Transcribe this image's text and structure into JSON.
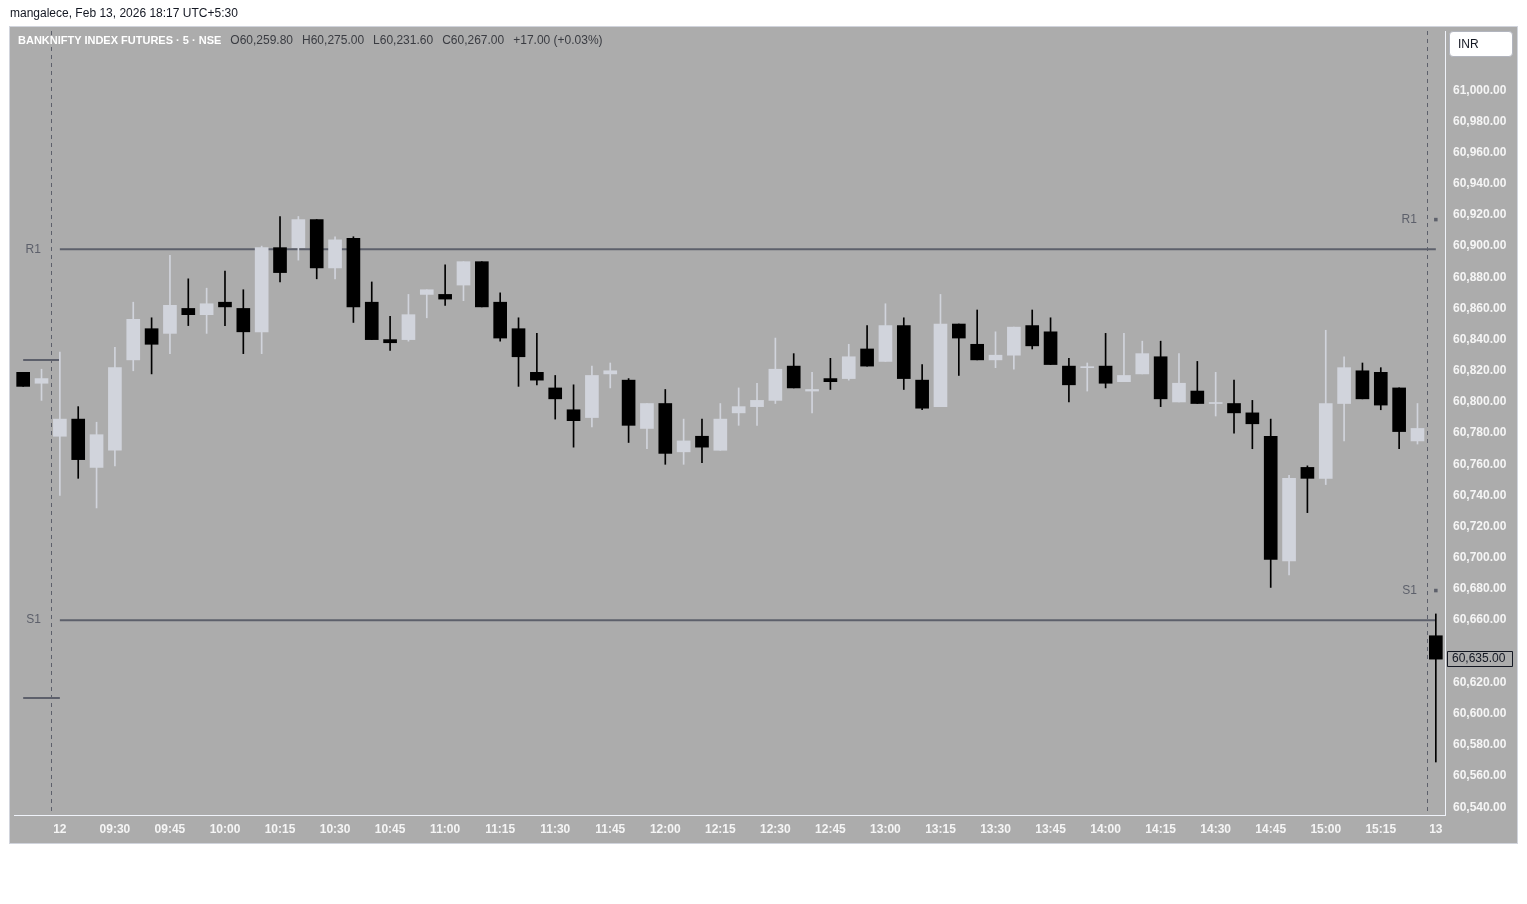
{
  "chart_data": {
    "type": "candlestick",
    "title": "BANKNIFTY INDEX FUTURES · 5 · NSE",
    "ylabel": "INR",
    "categories": [
      null,
      null,
      "12",
      null,
      null,
      "09:30",
      null,
      null,
      "09:45",
      null,
      null,
      "10:00",
      null,
      null,
      "10:15",
      null,
      null,
      "10:30",
      null,
      null,
      "10:45",
      null,
      null,
      "11:00",
      null,
      null,
      "11:15",
      null,
      null,
      "11:30",
      null,
      null,
      "11:45",
      null,
      null,
      "12:00",
      null,
      null,
      "12:15",
      null,
      null,
      "12:30",
      null,
      null,
      "12:45",
      null,
      null,
      "13:00",
      null,
      null,
      "13:15",
      null,
      null,
      "13:30",
      null,
      null,
      "13:45",
      null,
      null,
      "14:00",
      null,
      null,
      "14:15",
      null,
      null,
      "14:30",
      null,
      null,
      "14:45",
      null,
      null,
      "15:00",
      null,
      null,
      "15:15",
      null,
      null,
      "13"
    ],
    "ohlc": [
      [
        60819,
        60819,
        60810,
        60810
      ],
      [
        60812,
        60821,
        60801,
        60815
      ],
      [
        60778,
        60832,
        60740,
        60789
      ],
      [
        60789,
        60797,
        60751,
        60763
      ],
      [
        60758,
        60787,
        60732,
        60779
      ],
      [
        60769,
        60835,
        60759,
        60822
      ],
      [
        60827,
        60864,
        60820,
        60853
      ],
      [
        60847,
        60854,
        60818,
        60837
      ],
      [
        60844,
        60894,
        60831,
        60862
      ],
      [
        60860,
        60879,
        60849,
        60856
      ],
      [
        60856,
        60873,
        60844,
        60863
      ],
      [
        60864,
        60884,
        60849,
        60861
      ],
      [
        60860,
        60872,
        60831,
        60845
      ],
      [
        60845,
        60900,
        60831,
        60899
      ],
      [
        60899,
        60919,
        60877,
        60883
      ],
      [
        60899,
        60919,
        60891,
        60917
      ],
      [
        60917,
        60917,
        60879,
        60886
      ],
      [
        60886,
        60906,
        60879,
        60904
      ],
      [
        60905,
        60906,
        60851,
        60861
      ],
      [
        60864,
        60877,
        60840,
        60840
      ],
      [
        60840,
        60855,
        60833,
        60838
      ],
      [
        60840,
        60869,
        60839,
        60856
      ],
      [
        60869,
        60872,
        60854,
        60872
      ],
      [
        60869,
        60888,
        60862,
        60866
      ],
      [
        60875,
        60890,
        60865,
        60890
      ],
      [
        60890,
        60890,
        60861,
        60861
      ],
      [
        60864,
        60870,
        60839,
        60841
      ],
      [
        60847,
        60854,
        60810,
        60829
      ],
      [
        60819,
        60844,
        60811,
        60814
      ],
      [
        60809,
        60817,
        60789,
        60802
      ],
      [
        60795,
        60811,
        60771,
        60788
      ],
      [
        60790,
        60823,
        60784,
        60817
      ],
      [
        60818,
        60825,
        60809,
        60820
      ],
      [
        60814,
        60815,
        60774,
        60785
      ],
      [
        60783,
        60799,
        60770,
        60799
      ],
      [
        60799,
        60808,
        60760,
        60767
      ],
      [
        60768,
        60789,
        60760,
        60775
      ],
      [
        60778,
        60789,
        60761,
        60771
      ],
      [
        60769,
        60799,
        60769,
        60789
      ],
      [
        60793,
        60809,
        60785,
        60797
      ],
      [
        60797,
        60812,
        60785,
        60801
      ],
      [
        60801,
        60841,
        60799,
        60821
      ],
      [
        60823,
        60831,
        60809,
        60809
      ],
      [
        60807,
        60819,
        60793,
        60808
      ],
      [
        60815,
        60828,
        60808,
        60813
      ],
      [
        60815,
        60837,
        60814,
        60829
      ],
      [
        60834,
        60849,
        60823,
        60823
      ],
      [
        60826,
        60863,
        60826,
        60849
      ],
      [
        60849,
        60854,
        60808,
        60815
      ],
      [
        60814,
        60824,
        60795,
        60796
      ],
      [
        60797,
        60869,
        60797,
        60850
      ],
      [
        60850,
        60850,
        60817,
        60841
      ],
      [
        60837,
        60859,
        60827,
        60827
      ],
      [
        60827,
        60845,
        60822,
        60830
      ],
      [
        60830,
        60848,
        60821,
        60848
      ],
      [
        60849,
        60859,
        60834,
        60836
      ],
      [
        60845,
        60854,
        60824,
        60824
      ],
      [
        60823,
        60828,
        60800,
        60811
      ],
      [
        60822,
        60825,
        60807,
        60822
      ],
      [
        60823,
        60844,
        60809,
        60812
      ],
      [
        60813,
        60844,
        60813,
        60817
      ],
      [
        60818,
        60839,
        60818,
        60831
      ],
      [
        60829,
        60839,
        60797,
        60802
      ],
      [
        60800,
        60831,
        60800,
        60812
      ],
      [
        60807,
        60826,
        60799,
        60799
      ],
      [
        60799,
        60819,
        60791,
        60799
      ],
      [
        60799,
        60814,
        60780,
        60793
      ],
      [
        60793,
        60801,
        60770,
        60786
      ],
      [
        60778,
        60789,
        60681,
        60699
      ],
      [
        60698,
        60753,
        60689,
        60751
      ],
      [
        60758,
        60759,
        60729,
        60751
      ],
      [
        60751,
        60846,
        60747,
        60799
      ],
      [
        60799,
        60829,
        60775,
        60822
      ],
      [
        60820,
        60825,
        60802,
        60802
      ],
      [
        60819,
        60822,
        60795,
        60798
      ],
      [
        60809,
        60809,
        60770,
        60781
      ],
      [
        60775,
        60799,
        60773,
        60783
      ],
      [
        60650,
        60664,
        60569,
        60635
      ]
    ],
    "colors": [
      "#000000",
      "#d1d4dc",
      "#d1d4dc",
      "#000000",
      "#d1d4dc",
      "#d1d4dc",
      "#d1d4dc",
      "#000000",
      "#d1d4dc",
      "#000000",
      "#d1d4dc",
      "#000000",
      "#000000",
      "#d1d4dc",
      "#000000",
      "#d1d4dc",
      "#000000",
      "#d1d4dc",
      "#000000",
      "#000000",
      "#000000",
      "#d1d4dc",
      "#d1d4dc",
      "#000000",
      "#d1d4dc",
      "#000000",
      "#000000",
      "#000000",
      "#000000",
      "#000000",
      "#000000",
      "#d1d4dc",
      "#d1d4dc",
      "#000000",
      "#d1d4dc",
      "#000000",
      "#d1d4dc",
      "#000000",
      "#d1d4dc",
      "#d1d4dc",
      "#d1d4dc",
      "#d1d4dc",
      "#000000",
      "#d1d4dc",
      "#000000",
      "#d1d4dc",
      "#000000",
      "#d1d4dc",
      "#000000",
      "#000000",
      "#d1d4dc",
      "#000000",
      "#000000",
      "#d1d4dc",
      "#d1d4dc",
      "#000000",
      "#000000",
      "#000000",
      "#d1d4dc",
      "#000000",
      "#d1d4dc",
      "#d1d4dc",
      "#000000",
      "#d1d4dc",
      "#000000",
      "#d1d4dc",
      "#000000",
      "#000000",
      "#000000",
      "#d1d4dc",
      "#000000",
      "#d1d4dc",
      "#d1d4dc",
      "#000000",
      "#000000",
      "#000000",
      "#d1d4dc",
      "#000000"
    ],
    "series": [
      {
        "type": "line",
        "color": "#5d606b",
        "values": [
          60827,
          60827,
          60827,
          null,
          null,
          null,
          null,
          null,
          null,
          null,
          null,
          null,
          null,
          null,
          null,
          null,
          null,
          null,
          null,
          null,
          null,
          null,
          null,
          null,
          null,
          null,
          null,
          null,
          null,
          null,
          null,
          null,
          null,
          null,
          null,
          null,
          null,
          null,
          null,
          null,
          null,
          null,
          null,
          null,
          null,
          null,
          null,
          null,
          null,
          null,
          null,
          null,
          null,
          null,
          null,
          null,
          null,
          null,
          null,
          null,
          null,
          null,
          null,
          null,
          null,
          null,
          null,
          null,
          null,
          null,
          null,
          null,
          null,
          null,
          null,
          null,
          null,
          null
        ]
      },
      {
        "type": "line",
        "color": "#5d606b",
        "values": [
          60610,
          60610,
          60610,
          null,
          null,
          null,
          null,
          null,
          null,
          null,
          null,
          null,
          null,
          null,
          null,
          null,
          null,
          null,
          null,
          null,
          null,
          null,
          null,
          null,
          null,
          null,
          null,
          null,
          null,
          null,
          null,
          null,
          null,
          null,
          null,
          null,
          null,
          null,
          null,
          null,
          null,
          null,
          null,
          null,
          null,
          null,
          null,
          null,
          null,
          null,
          null,
          null,
          null,
          null,
          null,
          null,
          null,
          null,
          null,
          null,
          null,
          null,
          null,
          null,
          null,
          null,
          null,
          null,
          null,
          null,
          null,
          null,
          null,
          null,
          null,
          null,
          null,
          null
        ]
      },
      {
        "type": "line",
        "name": "R1",
        "color": "#5d606b",
        "values": [
          null,
          null,
          60898,
          60898,
          60898,
          60898,
          60898,
          60898,
          60898,
          60898,
          60898,
          60898,
          60898,
          null,
          null,
          null,
          null,
          null,
          null,
          60898,
          60898,
          60898,
          60898,
          60898,
          60898,
          60898,
          60898,
          60898,
          60898,
          60898,
          60898,
          60898,
          60898,
          60898,
          60898,
          60898,
          60898,
          60898,
          60898,
          60898,
          60898,
          60898,
          60898,
          60898,
          60898,
          60898,
          60898,
          60898,
          60898,
          60898,
          60898,
          60898,
          60898,
          60898,
          60898,
          60898,
          60898,
          60898,
          60898,
          60898,
          60898,
          60898,
          60898,
          60898,
          60898,
          60898,
          60898,
          60898,
          60898,
          60898,
          60898,
          60898,
          60898,
          60898,
          60898,
          60898,
          60898,
          60898
        ]
      },
      {
        "type": "line",
        "name": "S1",
        "color": "#5d606b",
        "values": [
          null,
          null,
          60660,
          60660,
          60660,
          60660,
          60660,
          60660,
          60660,
          60660,
          60660,
          60660,
          60660,
          60660,
          60660,
          60660,
          60660,
          60660,
          60660,
          60660,
          60660,
          60660,
          60660,
          60660,
          60660,
          60660,
          60660,
          60660,
          60660,
          60660,
          60660,
          60660,
          60660,
          60660,
          60660,
          60660,
          60660,
          60660,
          60660,
          60660,
          60660,
          60660,
          60660,
          60660,
          60660,
          60660,
          60660,
          60660,
          60660,
          60660,
          60660,
          60660,
          60660,
          60660,
          60660,
          60660,
          60660,
          60660,
          60660,
          60660,
          60660,
          60660,
          60660,
          60660,
          60660,
          60660,
          60660,
          60660,
          60660,
          60660,
          60660,
          60660,
          60660,
          60660,
          60660,
          60660,
          60660,
          60660
        ]
      },
      {
        "type": "line",
        "name": "R1",
        "color": "#5d606b",
        "marker": "square",
        "values": [
          null,
          null,
          null,
          null,
          null,
          null,
          null,
          null,
          null,
          null,
          null,
          null,
          null,
          null,
          null,
          null,
          null,
          null,
          null,
          null,
          null,
          null,
          null,
          null,
          null,
          null,
          null,
          null,
          null,
          null,
          null,
          null,
          null,
          null,
          null,
          null,
          null,
          null,
          null,
          null,
          null,
          null,
          null,
          null,
          null,
          null,
          null,
          null,
          null,
          null,
          null,
          null,
          null,
          null,
          null,
          null,
          null,
          null,
          null,
          null,
          null,
          null,
          null,
          null,
          null,
          null,
          null,
          null,
          null,
          null,
          null,
          null,
          null,
          null,
          null,
          null,
          null,
          60917
        ]
      },
      {
        "type": "line",
        "name": "S1",
        "color": "#5d606b",
        "marker": "square",
        "values": [
          null,
          null,
          null,
          null,
          null,
          null,
          null,
          null,
          null,
          null,
          null,
          null,
          null,
          null,
          null,
          null,
          null,
          null,
          null,
          null,
          null,
          null,
          null,
          null,
          null,
          null,
          null,
          null,
          null,
          null,
          null,
          null,
          null,
          null,
          null,
          null,
          null,
          null,
          null,
          null,
          null,
          null,
          null,
          null,
          null,
          null,
          null,
          null,
          null,
          null,
          null,
          null,
          null,
          null,
          null,
          null,
          null,
          null,
          null,
          null,
          null,
          null,
          null,
          null,
          null,
          null,
          null,
          null,
          null,
          null,
          null,
          null,
          null,
          null,
          null,
          null,
          null,
          60679
        ]
      }
    ],
    "ylim": [
      60535,
      61038
    ],
    "yticks": [
      {
        "value": 60540,
        "label": "60,540.00"
      },
      {
        "value": 60560,
        "label": "60,560.00"
      },
      {
        "value": 60580,
        "label": "60,580.00"
      },
      {
        "value": 60600,
        "label": "60,600.00"
      },
      {
        "value": 60620,
        "label": "60,620.00"
      },
      {
        "value": 60660,
        "label": "60,660.00"
      },
      {
        "value": 60680,
        "label": "60,680.00"
      },
      {
        "value": 60700,
        "label": "60,700.00"
      },
      {
        "value": 60720,
        "label": "60,720.00"
      },
      {
        "value": 60740,
        "label": "60,740.00"
      },
      {
        "value": 60760,
        "label": "60,760.00"
      },
      {
        "value": 60780,
        "label": "60,780.00"
      },
      {
        "value": 60800,
        "label": "60,800.00"
      },
      {
        "value": 60820,
        "label": "60,820.00"
      },
      {
        "value": 60840,
        "label": "60,840.00"
      },
      {
        "value": 60860,
        "label": "60,860.00"
      },
      {
        "value": 60880,
        "label": "60,880.00"
      },
      {
        "value": 60900,
        "label": "60,900.00"
      },
      {
        "value": 60920,
        "label": "60,920.00"
      },
      {
        "value": 60940,
        "label": "60,940.00"
      },
      {
        "value": 60960,
        "label": "60,960.00"
      },
      {
        "value": 60980,
        "label": "60,980.00"
      },
      {
        "value": 61000,
        "label": "61,000.00"
      }
    ],
    "ref_lines": [
      {
        "axis": "x",
        "value": "12",
        "line_style": "dashed",
        "color": "#5d606b"
      },
      {
        "axis": "x",
        "value": "13",
        "line_style": "dashed",
        "color": "#5d606b"
      }
    ],
    "annotations": [
      "mangalece, Feb 13, 2026 18:17 UTC+5:30",
      "O60,259.80",
      "H60,275.00",
      "L60,231.60",
      "C60,267.00",
      "+17.00 (+0.03%)",
      {
        "text": "60,635.00",
        "x": "13",
        "y": 60635
      }
    ]
  }
}
